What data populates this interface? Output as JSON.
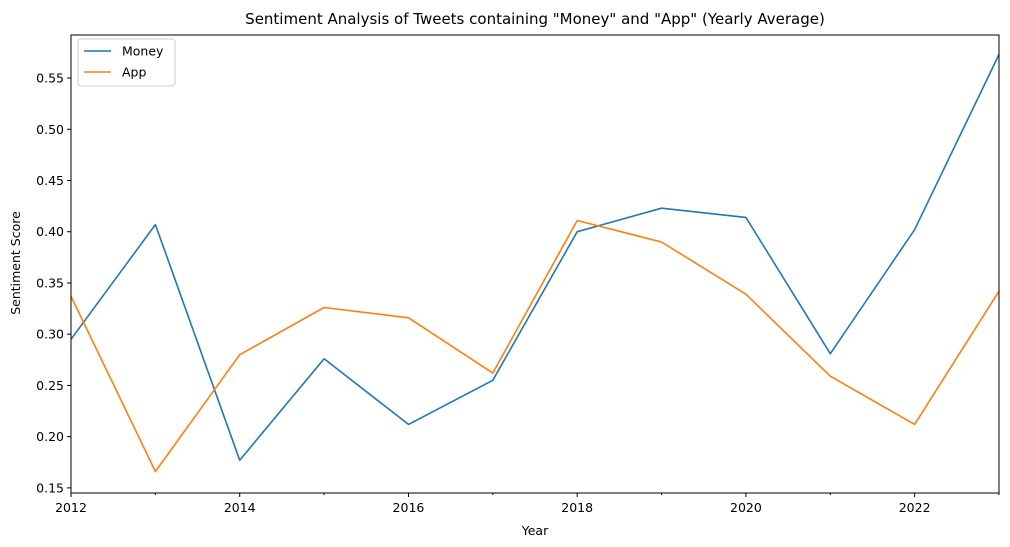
{
  "chart_data": {
    "type": "line",
    "title": "Sentiment Analysis of Tweets containing \"Money\" and \"App\" (Yearly Average)",
    "xlabel": "Year",
    "ylabel": "Sentiment Score",
    "x": [
      2012,
      2013,
      2014,
      2015,
      2016,
      2017,
      2018,
      2019,
      2020,
      2021,
      2022,
      2023
    ],
    "xlim": [
      2012,
      2023
    ],
    "ylim": [
      0.145,
      0.592
    ],
    "x_ticks": [
      "2012",
      "2014",
      "2016",
      "2018",
      "2020",
      "2022"
    ],
    "y_ticks": [
      "0.15",
      "0.20",
      "0.25",
      "0.30",
      "0.35",
      "0.40",
      "0.45",
      "0.50",
      "0.55"
    ],
    "grid": false,
    "legend_position": "top-left",
    "series": [
      {
        "name": "Money",
        "color": "#1f77b4",
        "values": [
          0.295,
          0.407,
          0.177,
          0.276,
          0.212,
          0.255,
          0.4,
          0.423,
          0.414,
          0.281,
          0.402,
          0.573
        ]
      },
      {
        "name": "App",
        "color": "#ff7f0e",
        "values": [
          0.337,
          0.166,
          0.28,
          0.326,
          0.316,
          0.262,
          0.411,
          0.39,
          0.339,
          0.259,
          0.212,
          0.342
        ]
      }
    ]
  }
}
